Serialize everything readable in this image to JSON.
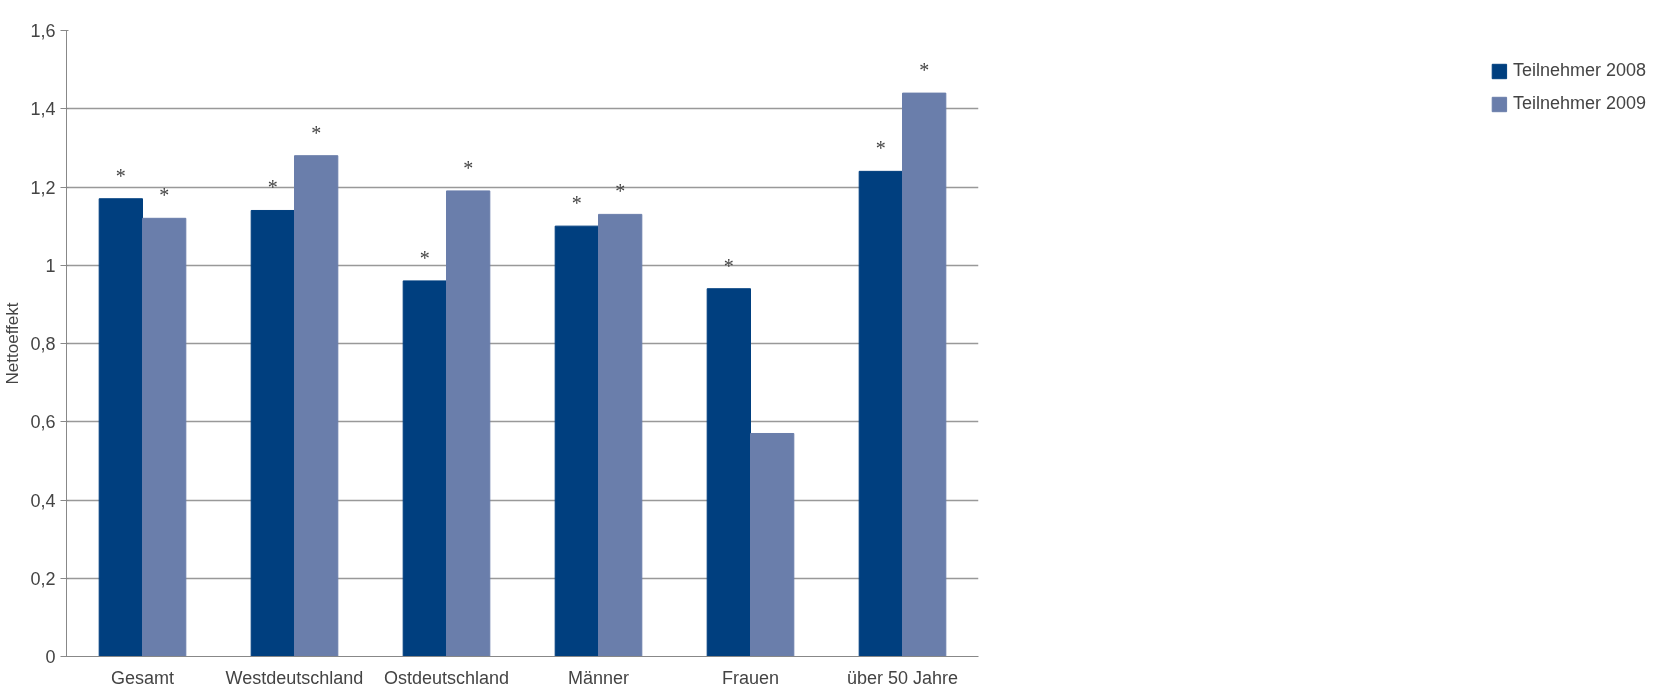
{
  "chart_data": {
    "type": "bar",
    "ylabel": "Nettoeffekt",
    "categories": [
      "Gesamt",
      "Westdeutschland",
      "Ostdeutschland",
      "Männer",
      "Frauen",
      "über 50 Jahre"
    ],
    "series": [
      {
        "name": "Teilnehmer 2008",
        "color": "#003f7f",
        "values": [
          1.17,
          1.14,
          0.96,
          1.1,
          0.94,
          1.24
        ],
        "value_labels": [
          "*",
          "*",
          "*",
          "*",
          "*",
          "*"
        ]
      },
      {
        "name": "Teilnehmer 2009",
        "color": "#6a7eab",
        "values": [
          1.12,
          1.28,
          1.19,
          1.13,
          0.57,
          1.44
        ],
        "value_labels": [
          "*",
          "*",
          "*",
          "*",
          null,
          "*"
        ]
      }
    ],
    "ylim": [
      0,
      1.6
    ],
    "yticks": [
      {
        "value": 0,
        "label": "0"
      },
      {
        "value": 0.2,
        "label": "0,2"
      },
      {
        "value": 0.4,
        "label": "0,4"
      },
      {
        "value": 0.6,
        "label": "0,6"
      },
      {
        "value": 0.8,
        "label": "0,8"
      },
      {
        "value": 1,
        "label": "1"
      },
      {
        "value": 1.2,
        "label": "1,2"
      },
      {
        "value": 1.4,
        "label": "1,4"
      },
      {
        "value": 1.6,
        "label": "1,6"
      }
    ],
    "grid": "y",
    "legend": "right"
  }
}
